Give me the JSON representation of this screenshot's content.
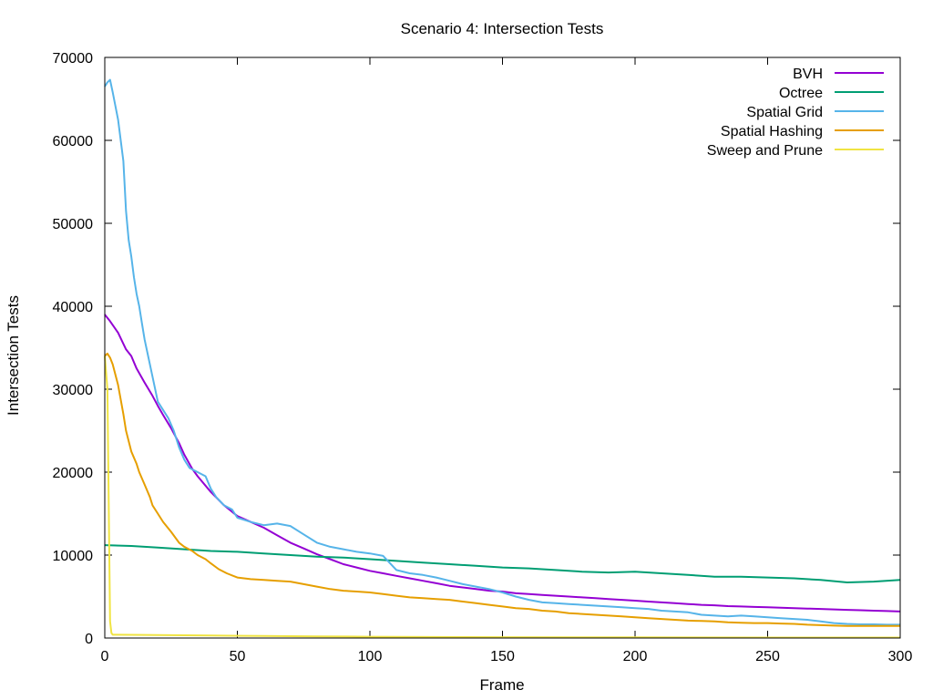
{
  "chart_data": {
    "type": "line",
    "title": "Scenario 4: Intersection Tests",
    "xlabel": "Frame",
    "ylabel": "Intersection Tests",
    "xlim": [
      0,
      300
    ],
    "ylim": [
      0,
      70000
    ],
    "xticks": [
      0,
      50,
      100,
      150,
      200,
      250,
      300
    ],
    "yticks": [
      0,
      10000,
      20000,
      30000,
      40000,
      50000,
      60000,
      70000
    ],
    "grid": false,
    "legend_position": "top-right",
    "series": [
      {
        "name": "BVH",
        "color": "#9400d3",
        "points": [
          [
            0,
            39000
          ],
          [
            2,
            38200
          ],
          [
            5,
            36800
          ],
          [
            8,
            34800
          ],
          [
            10,
            34000
          ],
          [
            12,
            32500
          ],
          [
            15,
            30800
          ],
          [
            18,
            29200
          ],
          [
            20,
            28000
          ],
          [
            22,
            26900
          ],
          [
            25,
            25300
          ],
          [
            28,
            23500
          ],
          [
            30,
            22100
          ],
          [
            33,
            20400
          ],
          [
            35,
            19500
          ],
          [
            40,
            17600
          ],
          [
            45,
            16000
          ],
          [
            50,
            14700
          ],
          [
            55,
            14000
          ],
          [
            60,
            13300
          ],
          [
            65,
            12400
          ],
          [
            70,
            11500
          ],
          [
            75,
            10800
          ],
          [
            80,
            10100
          ],
          [
            85,
            9500
          ],
          [
            90,
            8900
          ],
          [
            95,
            8500
          ],
          [
            100,
            8100
          ],
          [
            105,
            7800
          ],
          [
            110,
            7500
          ],
          [
            115,
            7200
          ],
          [
            120,
            6900
          ],
          [
            125,
            6600
          ],
          [
            130,
            6300
          ],
          [
            135,
            6100
          ],
          [
            140,
            5900
          ],
          [
            145,
            5700
          ],
          [
            150,
            5600
          ],
          [
            155,
            5400
          ],
          [
            160,
            5300
          ],
          [
            165,
            5200
          ],
          [
            170,
            5100
          ],
          [
            175,
            5000
          ],
          [
            180,
            4900
          ],
          [
            185,
            4800
          ],
          [
            190,
            4700
          ],
          [
            195,
            4600
          ],
          [
            200,
            4500
          ],
          [
            205,
            4400
          ],
          [
            210,
            4300
          ],
          [
            215,
            4200
          ],
          [
            220,
            4100
          ],
          [
            225,
            4000
          ],
          [
            230,
            3950
          ],
          [
            235,
            3850
          ],
          [
            240,
            3800
          ],
          [
            245,
            3750
          ],
          [
            250,
            3700
          ],
          [
            255,
            3650
          ],
          [
            260,
            3600
          ],
          [
            265,
            3550
          ],
          [
            270,
            3500
          ],
          [
            275,
            3450
          ],
          [
            280,
            3400
          ],
          [
            285,
            3350
          ],
          [
            290,
            3300
          ],
          [
            295,
            3250
          ],
          [
            300,
            3200
          ]
        ]
      },
      {
        "name": "Octree",
        "color": "#009e73",
        "points": [
          [
            0,
            11200
          ],
          [
            10,
            11100
          ],
          [
            20,
            10900
          ],
          [
            30,
            10700
          ],
          [
            40,
            10500
          ],
          [
            50,
            10400
          ],
          [
            60,
            10200
          ],
          [
            70,
            10000
          ],
          [
            80,
            9800
          ],
          [
            90,
            9700
          ],
          [
            100,
            9500
          ],
          [
            110,
            9300
          ],
          [
            120,
            9100
          ],
          [
            130,
            8900
          ],
          [
            140,
            8700
          ],
          [
            150,
            8500
          ],
          [
            160,
            8400
          ],
          [
            170,
            8200
          ],
          [
            180,
            8000
          ],
          [
            190,
            7900
          ],
          [
            200,
            8000
          ],
          [
            210,
            7800
          ],
          [
            220,
            7600
          ],
          [
            230,
            7400
          ],
          [
            240,
            7400
          ],
          [
            250,
            7300
          ],
          [
            260,
            7200
          ],
          [
            270,
            7000
          ],
          [
            280,
            6700
          ],
          [
            290,
            6800
          ],
          [
            300,
            7000
          ]
        ]
      },
      {
        "name": "Spatial Grid",
        "color": "#56b4e9",
        "points": [
          [
            0,
            66500
          ],
          [
            1,
            67000
          ],
          [
            2,
            67300
          ],
          [
            3,
            65800
          ],
          [
            5,
            62500
          ],
          [
            7,
            57500
          ],
          [
            8,
            51500
          ],
          [
            9,
            48000
          ],
          [
            10,
            46000
          ],
          [
            11,
            43500
          ],
          [
            12,
            41500
          ],
          [
            13,
            40000
          ],
          [
            14,
            38000
          ],
          [
            15,
            36000
          ],
          [
            16,
            34500
          ],
          [
            17,
            33000
          ],
          [
            18,
            31500
          ],
          [
            20,
            28500
          ],
          [
            22,
            27500
          ],
          [
            24,
            26500
          ],
          [
            26,
            25000
          ],
          [
            28,
            23000
          ],
          [
            30,
            21500
          ],
          [
            32,
            20500
          ],
          [
            35,
            20000
          ],
          [
            38,
            19500
          ],
          [
            40,
            18000
          ],
          [
            42,
            17000
          ],
          [
            45,
            16000
          ],
          [
            48,
            15500
          ],
          [
            50,
            14500
          ],
          [
            55,
            14000
          ],
          [
            60,
            13600
          ],
          [
            65,
            13800
          ],
          [
            70,
            13500
          ],
          [
            75,
            12500
          ],
          [
            80,
            11500
          ],
          [
            85,
            11000
          ],
          [
            90,
            10700
          ],
          [
            95,
            10400
          ],
          [
            100,
            10200
          ],
          [
            105,
            9900
          ],
          [
            110,
            8200
          ],
          [
            115,
            7800
          ],
          [
            120,
            7600
          ],
          [
            125,
            7300
          ],
          [
            130,
            6900
          ],
          [
            135,
            6500
          ],
          [
            140,
            6200
          ],
          [
            145,
            5900
          ],
          [
            150,
            5500
          ],
          [
            155,
            5000
          ],
          [
            160,
            4600
          ],
          [
            165,
            4300
          ],
          [
            170,
            4200
          ],
          [
            175,
            4100
          ],
          [
            180,
            4000
          ],
          [
            185,
            3900
          ],
          [
            190,
            3800
          ],
          [
            195,
            3700
          ],
          [
            200,
            3600
          ],
          [
            205,
            3500
          ],
          [
            210,
            3300
          ],
          [
            215,
            3200
          ],
          [
            220,
            3100
          ],
          [
            225,
            2800
          ],
          [
            230,
            2700
          ],
          [
            235,
            2600
          ],
          [
            240,
            2700
          ],
          [
            245,
            2600
          ],
          [
            250,
            2500
          ],
          [
            255,
            2400
          ],
          [
            260,
            2300
          ],
          [
            265,
            2200
          ],
          [
            270,
            2000
          ],
          [
            275,
            1800
          ],
          [
            280,
            1700
          ],
          [
            285,
            1650
          ],
          [
            290,
            1650
          ],
          [
            295,
            1600
          ],
          [
            300,
            1600
          ]
        ]
      },
      {
        "name": "Spatial Hashing",
        "color": "#e69f00",
        "points": [
          [
            0,
            34000
          ],
          [
            1,
            34300
          ],
          [
            2,
            33800
          ],
          [
            3,
            33000
          ],
          [
            5,
            30500
          ],
          [
            7,
            27000
          ],
          [
            8,
            25000
          ],
          [
            10,
            22500
          ],
          [
            12,
            21000
          ],
          [
            13,
            20000
          ],
          [
            15,
            18500
          ],
          [
            17,
            17000
          ],
          [
            18,
            16000
          ],
          [
            20,
            15000
          ],
          [
            22,
            14000
          ],
          [
            25,
            12800
          ],
          [
            28,
            11500
          ],
          [
            30,
            11000
          ],
          [
            33,
            10500
          ],
          [
            35,
            10000
          ],
          [
            38,
            9500
          ],
          [
            40,
            9000
          ],
          [
            43,
            8300
          ],
          [
            46,
            7800
          ],
          [
            50,
            7300
          ],
          [
            55,
            7100
          ],
          [
            60,
            7000
          ],
          [
            65,
            6900
          ],
          [
            70,
            6800
          ],
          [
            75,
            6500
          ],
          [
            80,
            6200
          ],
          [
            85,
            5900
          ],
          [
            90,
            5700
          ],
          [
            95,
            5600
          ],
          [
            100,
            5500
          ],
          [
            105,
            5300
          ],
          [
            110,
            5100
          ],
          [
            115,
            4900
          ],
          [
            120,
            4800
          ],
          [
            125,
            4700
          ],
          [
            130,
            4600
          ],
          [
            135,
            4400
          ],
          [
            140,
            4200
          ],
          [
            145,
            4000
          ],
          [
            150,
            3800
          ],
          [
            155,
            3600
          ],
          [
            160,
            3500
          ],
          [
            165,
            3300
          ],
          [
            170,
            3200
          ],
          [
            175,
            3000
          ],
          [
            180,
            2900
          ],
          [
            185,
            2800
          ],
          [
            190,
            2700
          ],
          [
            195,
            2600
          ],
          [
            200,
            2500
          ],
          [
            205,
            2400
          ],
          [
            210,
            2300
          ],
          [
            215,
            2200
          ],
          [
            220,
            2100
          ],
          [
            225,
            2050
          ],
          [
            230,
            2000
          ],
          [
            235,
            1900
          ],
          [
            240,
            1850
          ],
          [
            245,
            1800
          ],
          [
            250,
            1800
          ],
          [
            255,
            1750
          ],
          [
            260,
            1700
          ],
          [
            265,
            1600
          ],
          [
            270,
            1550
          ],
          [
            275,
            1500
          ],
          [
            280,
            1450
          ],
          [
            290,
            1450
          ],
          [
            300,
            1450
          ]
        ]
      },
      {
        "name": "Sweep and Prune",
        "color": "#f0e442",
        "points": [
          [
            0,
            34000
          ],
          [
            1,
            30000
          ],
          [
            2,
            2000
          ],
          [
            2.5,
            600
          ],
          [
            3,
            400
          ],
          [
            10,
            380
          ],
          [
            20,
            350
          ],
          [
            40,
            300
          ],
          [
            60,
            250
          ],
          [
            80,
            200
          ],
          [
            100,
            150
          ],
          [
            150,
            100
          ],
          [
            200,
            80
          ],
          [
            250,
            60
          ],
          [
            300,
            50
          ]
        ]
      }
    ]
  }
}
